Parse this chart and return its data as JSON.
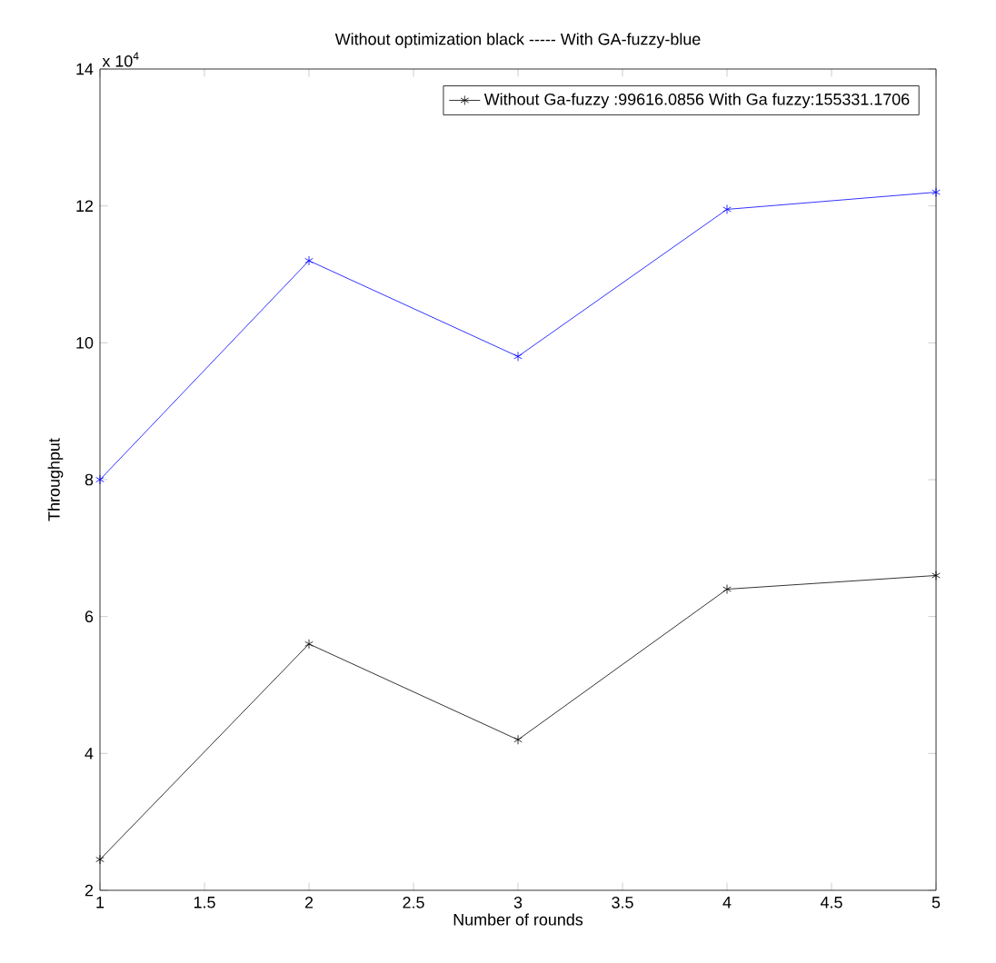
{
  "chart_data": {
    "type": "line",
    "title": "Without optimization black   ----- With GA-fuzzy-blue",
    "xlabel": "Number of rounds",
    "ylabel": "Throughput",
    "x": [
      1,
      2,
      3,
      4,
      5
    ],
    "series": [
      {
        "name": "Without Ga-fuzzy :99616.0856 With Ga fuzzy:155331.1706",
        "color": "#000000",
        "values": [
          2.45,
          5.6,
          4.2,
          6.4,
          6.6
        ]
      },
      {
        "color": "#0000ff",
        "values": [
          8.0,
          11.2,
          9.8,
          11.95,
          12.2
        ]
      }
    ],
    "xlim": [
      1,
      5
    ],
    "xticks": [
      1,
      1.5,
      2,
      2.5,
      3,
      3.5,
      4,
      4.5,
      5
    ],
    "ylim": [
      2,
      14
    ],
    "yticks": [
      2,
      4,
      6,
      8,
      10,
      12,
      14
    ],
    "annotations": [
      "x 10$^{4}$"
    ],
    "legend": "top right",
    "marker": "cross",
    "line_style": "solid",
    "grid": false
  }
}
